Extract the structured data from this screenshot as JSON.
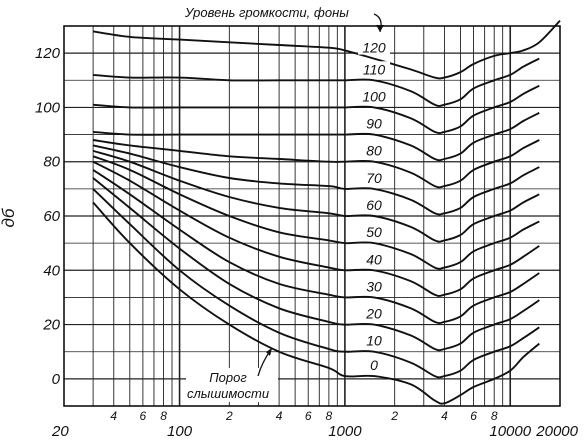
{
  "chart_data": {
    "type": "line",
    "title": "Уровень громкости, фоны",
    "ylabel": "дб",
    "xlabel": "",
    "x_scale": "log",
    "xlim": [
      20,
      20000
    ],
    "ylim": [
      -10,
      130
    ],
    "y_ticks": [
      "0",
      "20",
      "40",
      "60",
      "80",
      "100",
      "120"
    ],
    "x_major_ticks": [
      {
        "value": 20,
        "label": "20"
      },
      {
        "value": 100,
        "label": "100"
      },
      {
        "value": 1000,
        "label": "1000"
      },
      {
        "value": 10000,
        "label": "10000"
      },
      {
        "value": 20000,
        "label": "20000"
      }
    ],
    "x_minor_ticks": [
      {
        "value": 40,
        "label": "4"
      },
      {
        "value": 60,
        "label": "6"
      },
      {
        "value": 80,
        "label": "8"
      },
      {
        "value": 200,
        "label": "2"
      },
      {
        "value": 400,
        "label": "4"
      },
      {
        "value": 600,
        "label": "6"
      },
      {
        "value": 800,
        "label": "8"
      },
      {
        "value": 2000,
        "label": "2"
      },
      {
        "value": 4000,
        "label": "4"
      },
      {
        "value": 6000,
        "label": "6"
      },
      {
        "value": 8000,
        "label": "8"
      }
    ],
    "grid": true,
    "annotation": "Порог слышимости",
    "series": [
      {
        "name": "0",
        "x": [
          30,
          50,
          100,
          200,
          400,
          800,
          1000,
          1500,
          2500,
          3500,
          4000,
          5000,
          6000,
          8000,
          10000,
          12000,
          15000
        ],
        "y": [
          65,
          50,
          33,
          20,
          10,
          4,
          1,
          1,
          -2,
          -8,
          -9,
          -6,
          -3,
          0,
          3,
          8,
          13
        ]
      },
      {
        "name": "10",
        "x": [
          30,
          50,
          100,
          200,
          400,
          800,
          1000,
          1500,
          2500,
          3500,
          4000,
          5000,
          6000,
          8000,
          10000,
          12000,
          15000
        ],
        "y": [
          70,
          57,
          40,
          27,
          17,
          11,
          10,
          10,
          6,
          1,
          1,
          3,
          7,
          10,
          12,
          15,
          19
        ]
      },
      {
        "name": "20",
        "x": [
          30,
          50,
          100,
          200,
          400,
          800,
          1000,
          1500,
          2500,
          3500,
          4000,
          5000,
          6000,
          8000,
          10000,
          12000,
          15000
        ],
        "y": [
          74,
          63,
          48,
          35,
          26,
          21,
          20,
          20,
          16,
          11,
          11,
          13,
          17,
          20,
          22,
          25,
          29
        ]
      },
      {
        "name": "30",
        "x": [
          30,
          50,
          100,
          200,
          400,
          800,
          1000,
          1500,
          2500,
          3500,
          4000,
          5000,
          6000,
          8000,
          10000,
          12000,
          15000
        ],
        "y": [
          77,
          68,
          55,
          43,
          35,
          31,
          30,
          30,
          26,
          21,
          21,
          23,
          27,
          30,
          32,
          35,
          39
        ]
      },
      {
        "name": "40",
        "x": [
          30,
          50,
          100,
          200,
          400,
          800,
          1000,
          1500,
          2500,
          3500,
          4000,
          5000,
          6000,
          8000,
          10000,
          12000,
          15000
        ],
        "y": [
          80,
          73,
          62,
          52,
          45,
          41,
          40,
          40,
          36,
          31,
          31,
          33,
          37,
          40,
          42,
          45,
          49
        ]
      },
      {
        "name": "50",
        "x": [
          30,
          50,
          100,
          200,
          400,
          800,
          1000,
          1500,
          2500,
          3500,
          4000,
          5000,
          6000,
          8000,
          10000,
          12000,
          15000
        ],
        "y": [
          82,
          77,
          68,
          60,
          54,
          51,
          50,
          50,
          46,
          41,
          41,
          43,
          47,
          50,
          52,
          55,
          58
        ]
      },
      {
        "name": "60",
        "x": [
          30,
          50,
          100,
          200,
          400,
          800,
          1000,
          1500,
          2500,
          3500,
          4000,
          5000,
          6000,
          8000,
          10000,
          12000,
          15000
        ],
        "y": [
          84,
          80,
          73,
          67,
          63,
          61,
          60,
          60,
          56,
          51,
          51,
          53,
          57,
          60,
          62,
          65,
          68
        ]
      },
      {
        "name": "70",
        "x": [
          30,
          50,
          100,
          200,
          400,
          800,
          1000,
          1500,
          2500,
          3500,
          4000,
          5000,
          6000,
          8000,
          10000,
          12000,
          15000
        ],
        "y": [
          86,
          83,
          78,
          74,
          72,
          71,
          70,
          70,
          66,
          61,
          61,
          63,
          67,
          70,
          72,
          75,
          78
        ]
      },
      {
        "name": "80",
        "x": [
          30,
          50,
          100,
          200,
          400,
          800,
          1000,
          1500,
          2500,
          3500,
          4000,
          5000,
          6000,
          8000,
          10000,
          12000,
          15000
        ],
        "y": [
          88,
          86,
          84,
          82,
          81,
          80,
          80,
          80,
          76,
          71,
          71,
          73,
          77,
          80,
          82,
          85,
          88
        ]
      },
      {
        "name": "90",
        "x": [
          30,
          50,
          100,
          200,
          400,
          800,
          1000,
          1500,
          2500,
          3500,
          4000,
          5000,
          6000,
          8000,
          10000,
          12000,
          15000
        ],
        "y": [
          91,
          90,
          90,
          90,
          90,
          90,
          90,
          90,
          86,
          81,
          81,
          83,
          87,
          90,
          92,
          95,
          98
        ]
      },
      {
        "name": "100",
        "x": [
          30,
          50,
          100,
          200,
          400,
          800,
          1000,
          1500,
          2500,
          3500,
          4000,
          5000,
          6000,
          8000,
          10000,
          12000,
          15000
        ],
        "y": [
          101,
          100,
          100,
          100,
          100,
          100,
          100,
          100,
          96,
          91,
          91,
          93,
          97,
          100,
          102,
          105,
          108
        ]
      },
      {
        "name": "110",
        "x": [
          30,
          50,
          100,
          200,
          400,
          800,
          1000,
          1500,
          2500,
          3500,
          4000,
          5000,
          6000,
          8000,
          10000,
          12000,
          15000
        ],
        "y": [
          112,
          111,
          111,
          110,
          110,
          110,
          110,
          110,
          106,
          101,
          101,
          103,
          107,
          110,
          112,
          115,
          118
        ]
      },
      {
        "name": "120",
        "x": [
          30,
          50,
          100,
          200,
          400,
          800,
          1000,
          1500,
          2500,
          3500,
          4000,
          5000,
          6000,
          8000,
          10000,
          12000,
          15000,
          20000
        ],
        "y": [
          128,
          126,
          125,
          124,
          123,
          122,
          121,
          118,
          114,
          111,
          111,
          113,
          116,
          119,
          120,
          121,
          124,
          132
        ]
      }
    ]
  }
}
